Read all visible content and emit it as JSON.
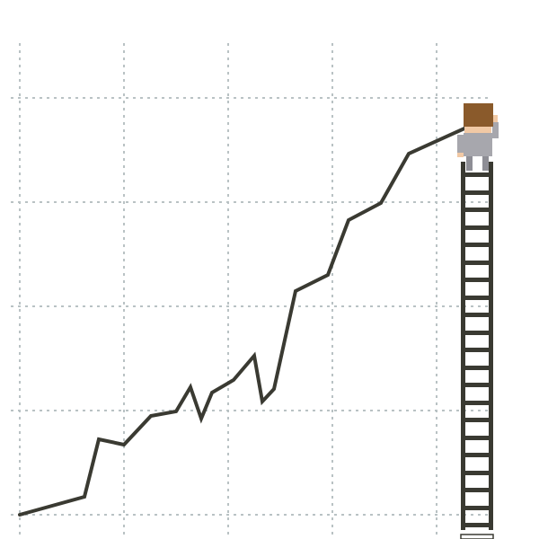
{
  "scene": {
    "description_tags": [
      "growth-line",
      "ladder",
      "climber"
    ],
    "colors": {
      "background": "#ffffff",
      "grid": "#b9c2c4",
      "line": "#3a3a32",
      "ladder": "#3a3a32",
      "hair": "#8a5a2b",
      "skin": "#f1c9a5",
      "suit": "#a7a7ad",
      "suit_dark": "#8e8e95"
    }
  }
}
